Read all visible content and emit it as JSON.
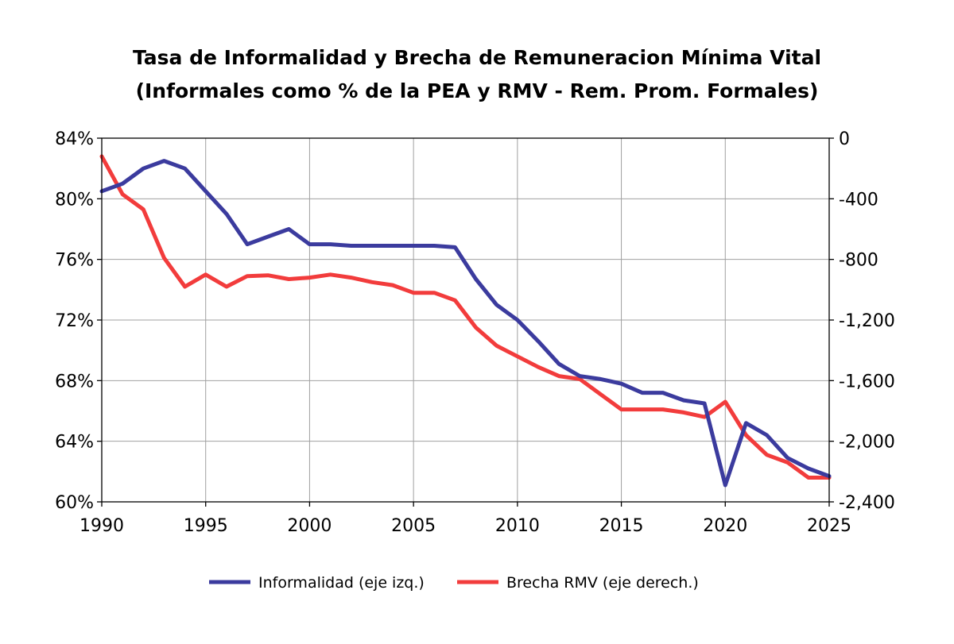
{
  "chart_data": {
    "type": "line",
    "title": "Tasa de Informalidad y Brecha de Remuneracion Mínima Vital",
    "subtitle": "(Informales como % de la PEA y RMV - Rem. Prom. Formales)",
    "xlim": [
      1990,
      2025
    ],
    "x_ticks": [
      1990,
      1995,
      2000,
      2005,
      2010,
      2015,
      2020,
      2025
    ],
    "x_tick_labels": [
      "1990",
      "1995",
      "2000",
      "2005",
      "2010",
      "2015",
      "2020",
      "2025"
    ],
    "y_left": {
      "ylim": [
        60,
        84
      ],
      "ticks": [
        60,
        64,
        68,
        72,
        76,
        80,
        84
      ],
      "tick_labels": [
        "60%",
        "64%",
        "68%",
        "72%",
        "76%",
        "80%",
        "84%"
      ]
    },
    "y_right": {
      "ylim": [
        -2400,
        0
      ],
      "ticks": [
        0,
        -400,
        -800,
        -1200,
        -1600,
        -2000,
        -2400
      ],
      "tick_labels": [
        "0",
        "-400",
        "-800",
        "-1,200",
        "-1,600",
        "-2,000",
        "-2,400"
      ]
    },
    "grid": true,
    "legend_position": "bottom",
    "series": [
      {
        "name": "Informalidad (eje izq.)",
        "axis": "left",
        "color": "#3b3b9e",
        "x": [
          1990,
          1991,
          1992,
          1993,
          1994,
          1995,
          1996,
          1997,
          1998,
          1999,
          2000,
          2001,
          2002,
          2003,
          2004,
          2005,
          2006,
          2007,
          2008,
          2009,
          2010,
          2011,
          2012,
          2013,
          2014,
          2015,
          2016,
          2017,
          2018,
          2019,
          2020,
          2021,
          2022,
          2023,
          2024,
          2025
        ],
        "values": [
          80.5,
          81.0,
          82.0,
          82.5,
          82.0,
          80.5,
          79.0,
          77.0,
          77.5,
          78.0,
          77.0,
          77.0,
          76.9,
          76.9,
          76.9,
          76.9,
          76.9,
          76.8,
          74.7,
          73.0,
          72.0,
          70.6,
          69.1,
          68.3,
          68.1,
          67.8,
          67.2,
          67.2,
          66.7,
          66.5,
          61.1,
          65.2,
          64.4,
          62.9,
          62.2,
          61.7
        ]
      },
      {
        "name": "Brecha RMV (eje derech.)",
        "axis": "right",
        "color": "#f23c3c",
        "x": [
          1990,
          1991,
          1992,
          1993,
          1994,
          1995,
          1996,
          1997,
          1998,
          1999,
          2000,
          2001,
          2002,
          2003,
          2004,
          2005,
          2006,
          2007,
          2008,
          2009,
          2010,
          2011,
          2012,
          2013,
          2014,
          2015,
          2016,
          2017,
          2018,
          2019,
          2020,
          2021,
          2022,
          2023,
          2024,
          2025
        ],
        "values": [
          -120,
          -370,
          -470,
          -790,
          -980,
          -900,
          -980,
          -910,
          -905,
          -930,
          -920,
          -900,
          -920,
          -950,
          -970,
          -1020,
          -1020,
          -1070,
          -1250,
          -1370,
          -1440,
          -1510,
          -1570,
          -1590,
          -1690,
          -1790,
          -1790,
          -1790,
          -1810,
          -1840,
          -1740,
          -1960,
          -2090,
          -2140,
          -2240,
          -2240
        ]
      }
    ]
  }
}
